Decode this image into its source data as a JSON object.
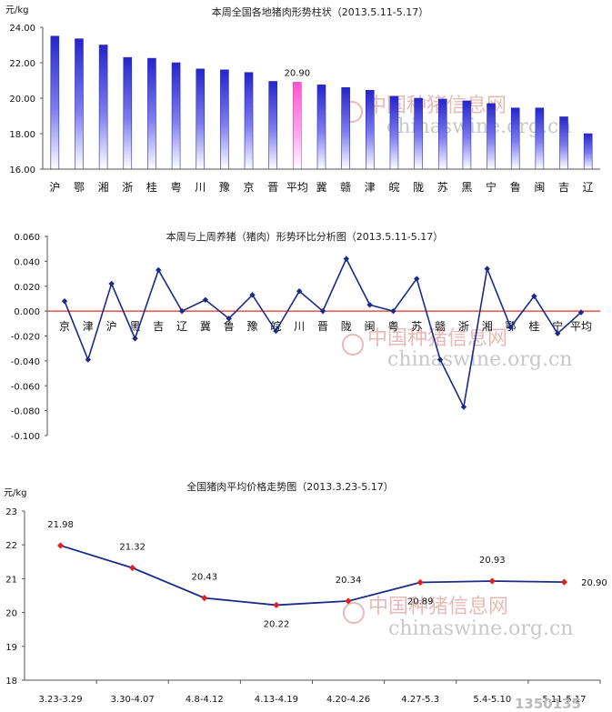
{
  "colors": {
    "bar": "#3b3bd6",
    "bar_highlight": "#ff66cc",
    "line": "#1a2a8a",
    "zero_line": "#e03030",
    "marker3": "#e02020"
  },
  "watermark": {
    "cn_a": "中国种猪",
    "cn_b": "信息网",
    "en": "chinaswine.org.cn"
  },
  "footer_logo": "1350135",
  "chart_data": [
    {
      "type": "bar",
      "title": "本周全国各地猪肉形势柱状（2013.5.11-5.17）",
      "ylabel": "元/kg",
      "ylim": [
        16,
        24
      ],
      "yticks": [
        "16.00",
        "18.00",
        "20.00",
        "22.00",
        "24.00"
      ],
      "categories": [
        "沪",
        "鄂",
        "湘",
        "浙",
        "桂",
        "粤",
        "川",
        "豫",
        "京",
        "晋",
        "平均",
        "冀",
        "赣",
        "津",
        "皖",
        "陇",
        "苏",
        "黑",
        "宁",
        "鲁",
        "闽",
        "吉",
        "辽"
      ],
      "values": [
        23.5,
        23.35,
        23.0,
        22.3,
        22.25,
        22.0,
        21.65,
        21.6,
        21.45,
        20.95,
        20.9,
        20.75,
        20.6,
        20.45,
        20.1,
        20.0,
        19.95,
        19.85,
        19.7,
        19.45,
        19.45,
        18.95,
        18.0
      ],
      "highlight_index": 10,
      "annotation": "20.90",
      "grid": false
    },
    {
      "type": "line",
      "title": "本周与上周养猪（猪肉）形势环比分析图（2013.5.11-5.17）",
      "ylim": [
        -0.1,
        0.06
      ],
      "yticks": [
        "0.060",
        "0.040",
        "0.020",
        "0.000",
        "-0.020",
        "-0.040",
        "-0.060",
        "-0.080",
        "-0.100"
      ],
      "categories": [
        "京",
        "津",
        "沪",
        "黑",
        "吉",
        "辽",
        "冀",
        "鲁",
        "豫",
        "皖",
        "川",
        "晋",
        "陇",
        "闽",
        "粤",
        "苏",
        "赣",
        "浙",
        "湘",
        "鄂",
        "桂",
        "宁",
        "平均"
      ],
      "values": [
        0.008,
        -0.039,
        0.022,
        -0.022,
        0.033,
        0.0,
        0.009,
        -0.006,
        0.013,
        -0.016,
        0.016,
        0.0,
        0.042,
        0.005,
        0.0,
        0.026,
        -0.039,
        -0.077,
        0.034,
        -0.013,
        0.012,
        -0.018,
        -0.001
      ],
      "grid": false
    },
    {
      "type": "line",
      "title": "全国猪肉平均价格走势图（2013.3.23-5.17）",
      "ylabel": "元/kg",
      "ylim": [
        18,
        23
      ],
      "yticks": [
        "18",
        "19",
        "20",
        "21",
        "22",
        "23"
      ],
      "categories": [
        "3.23-3.29",
        "3.30-4.07",
        "4.8-4.12",
        "4.13-4.19",
        "4.20-4.26",
        "4.27-5.3",
        "5.4-5.10",
        "5.11-5.17"
      ],
      "values": [
        21.98,
        21.32,
        20.43,
        20.22,
        20.34,
        20.89,
        20.93,
        20.9
      ],
      "labels": [
        "21.98",
        "21.32",
        "20.43",
        "20.22",
        "20.34",
        "20.89",
        "20.93",
        "20.90"
      ],
      "grid": false
    }
  ]
}
